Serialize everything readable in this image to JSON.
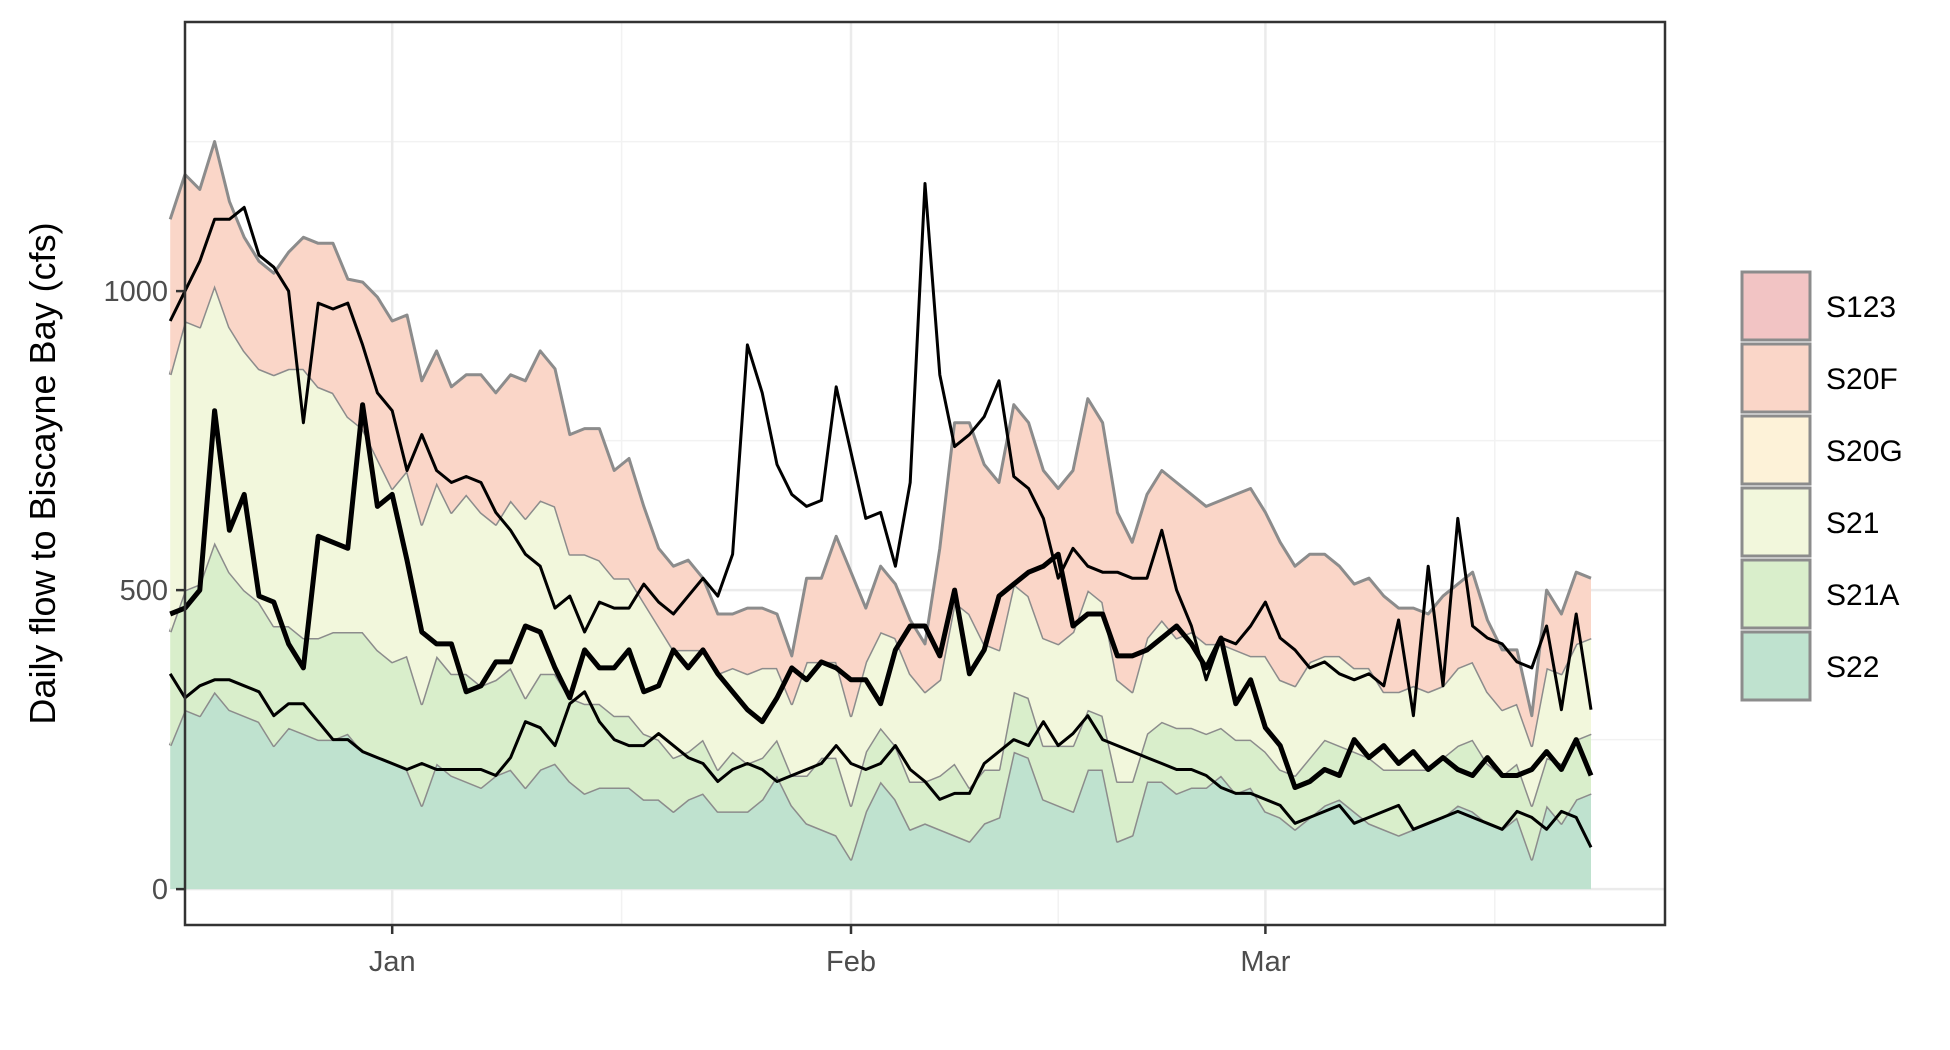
{
  "chart_data": {
    "type": "area",
    "stacked": true,
    "ylabel": "Daily flow to Biscayne Bay (cfs)",
    "xlabel": "",
    "title": "",
    "ylim": [
      -60,
      1450
    ],
    "y_ticks": [
      0,
      500,
      1000
    ],
    "x_ticks": [
      {
        "label": "Jan",
        "date": "2021-01-01"
      },
      {
        "label": "Feb",
        "date": "2021-02-01"
      },
      {
        "label": "Mar",
        "date": "2021-03-01"
      }
    ],
    "xlim": [
      "2020-12-18",
      "2021-03-28"
    ],
    "grid": true,
    "legend_position": "right",
    "series": [
      {
        "name": "S123",
        "color": "#f2c4c4",
        "values": []
      },
      {
        "name": "S20F",
        "color": "#fad6c8",
        "values": [
          260,
          245,
          230,
          240,
          210,
          190,
          180,
          170,
          195,
          220,
          240,
          250,
          230,
          245,
          270,
          280,
          260,
          240,
          220,
          210,
          200,
          230,
          220,
          210,
          230,
          250,
          230,
          200,
          210,
          220,
          180,
          200,
          160,
          130,
          140,
          150,
          120,
          100,
          90,
          110,
          100,
          90,
          80,
          140,
          140,
          210,
          240,
          90,
          110,
          90,
          90,
          80,
          220,
          300,
          320,
          300,
          280,
          300,
          290,
          280,
          260,
          270,
          320,
          300,
          280,
          250,
          240,
          250,
          260,
          230,
          230,
          240,
          260,
          280,
          240,
          230,
          200,
          180,
          170,
          150,
          140,
          150,
          160,
          140,
          130,
          130,
          150,
          140,
          150,
          120,
          100,
          90,
          50,
          130,
          100,
          120,
          100
        ]
      },
      {
        "name": "S20G",
        "color": "#fdf2d8",
        "values": []
      },
      {
        "name": "S21",
        "color": "#f2f7dc",
        "values": [
          430,
          450,
          430,
          430,
          410,
          400,
          390,
          420,
          430,
          450,
          420,
          400,
          360,
          340,
          320,
          290,
          310,
          300,
          290,
          270,
          300,
          290,
          260,
          280,
          300,
          290,
          280,
          240,
          250,
          240,
          230,
          230,
          220,
          190,
          180,
          170,
          150,
          160,
          140,
          150,
          150,
          120,
          120,
          190,
          160,
          160,
          150,
          150,
          160,
          180,
          180,
          150,
          160,
          270,
          290,
          210,
          200,
          180,
          170,
          180,
          170,
          190,
          200,
          190,
          170,
          150,
          160,
          170,
          150,
          160,
          150,
          140,
          150,
          140,
          160,
          150,
          150,
          160,
          140,
          150,
          140,
          150,
          130,
          130,
          140,
          130,
          120,
          130,
          130,
          120,
          110,
          100,
          100,
          150,
          150,
          160,
          160
        ]
      },
      {
        "name": "S21A",
        "color": "#d9eecb",
        "values": [
          190,
          200,
          220,
          250,
          230,
          210,
          200,
          200,
          170,
          160,
          170,
          180,
          170,
          200,
          180,
          170,
          190,
          170,
          180,
          170,
          180,
          170,
          160,
          170,
          150,
          160,
          150,
          140,
          150,
          140,
          120,
          120,
          110,
          100,
          90,
          80,
          90,
          70,
          100,
          80,
          70,
          60,
          50,
          80,
          120,
          130,
          90,
          100,
          90,
          90,
          80,
          70,
          90,
          120,
          90,
          90,
          80,
          100,
          100,
          90,
          100,
          110,
          100,
          90,
          100,
          90,
          80,
          100,
          110,
          100,
          90,
          80,
          90,
          80,
          100,
          80,
          90,
          100,
          110,
          90,
          100,
          110,
          100,
          110,
          100,
          90,
          100,
          100,
          120,
          100,
          90,
          90,
          90,
          80,
          100,
          100,
          100
        ]
      },
      {
        "name": "S22",
        "color": "#bfe2cf",
        "values": [
          240,
          300,
          290,
          330,
          300,
          290,
          280,
          240,
          270,
          260,
          250,
          250,
          260,
          230,
          220,
          210,
          200,
          140,
          210,
          190,
          180,
          170,
          190,
          200,
          170,
          200,
          210,
          180,
          160,
          170,
          170,
          170,
          150,
          150,
          130,
          150,
          160,
          130,
          130,
          130,
          150,
          190,
          140,
          110,
          100,
          90,
          50,
          130,
          180,
          150,
          100,
          110,
          100,
          90,
          80,
          110,
          120,
          230,
          220,
          150,
          140,
          130,
          200,
          200,
          80,
          90,
          180,
          180,
          160,
          170,
          170,
          190,
          160,
          170,
          130,
          120,
          100,
          120,
          140,
          150,
          130,
          110,
          100,
          90,
          100,
          110,
          120,
          140,
          130,
          110,
          100,
          120,
          50,
          140,
          110,
          150,
          160
        ]
      }
    ],
    "dates_start": "2020-12-17",
    "overlay_lines": [
      {
        "name": "",
        "width": 5,
        "values": [
          460,
          470,
          500,
          800,
          600,
          660,
          490,
          480,
          410,
          370,
          590,
          580,
          570,
          810,
          640,
          660,
          550,
          430,
          410,
          410,
          330,
          340,
          380,
          380,
          440,
          430,
          370,
          320,
          400,
          370,
          370,
          400,
          330,
          340,
          400,
          370,
          400,
          360,
          330,
          300,
          280,
          320,
          370,
          350,
          380,
          370,
          350,
          350,
          310,
          400,
          440,
          440,
          390,
          500,
          360,
          400,
          490,
          510,
          530,
          540,
          560,
          440,
          460,
          460,
          390,
          390,
          400,
          420,
          440,
          410,
          370,
          420,
          310,
          350,
          270,
          240,
          170,
          180,
          200,
          190,
          250,
          220,
          240,
          210,
          230,
          200,
          220,
          200,
          190,
          220,
          190,
          190,
          200,
          230,
          200,
          250,
          190
        ]
      },
      {
        "name": "",
        "width": 3,
        "values": [
          950,
          1000,
          1050,
          1120,
          1120,
          1140,
          1060,
          1040,
          1000,
          780,
          980,
          970,
          980,
          910,
          830,
          800,
          700,
          760,
          700,
          680,
          690,
          680,
          630,
          600,
          560,
          540,
          470,
          490,
          430,
          480,
          470,
          470,
          510,
          480,
          460,
          490,
          520,
          490,
          560,
          910,
          830,
          710,
          660,
          640,
          650,
          840,
          730,
          620,
          630,
          540,
          680,
          1180,
          860,
          740,
          760,
          790,
          850,
          690,
          670,
          620,
          520,
          570,
          540,
          530,
          530,
          520,
          520,
          600,
          500,
          440,
          350,
          420,
          410,
          440,
          480,
          420,
          400,
          370,
          380,
          360,
          350,
          360,
          340,
          450,
          290,
          540,
          340,
          620,
          440,
          420,
          410,
          380,
          370,
          440,
          300,
          460,
          300
        ]
      },
      {
        "name": "",
        "width": 3,
        "values": [
          360,
          320,
          340,
          350,
          350,
          340,
          330,
          290,
          310,
          310,
          280,
          250,
          250,
          230,
          220,
          210,
          200,
          210,
          200,
          200,
          200,
          200,
          190,
          220,
          280,
          270,
          240,
          310,
          330,
          280,
          250,
          240,
          240,
          260,
          240,
          220,
          210,
          180,
          200,
          210,
          200,
          180,
          190,
          200,
          210,
          240,
          210,
          200,
          210,
          240,
          200,
          180,
          150,
          160,
          160,
          210,
          230,
          250,
          240,
          280,
          240,
          260,
          290,
          250,
          240,
          230,
          220,
          210,
          200,
          200,
          190,
          170,
          160,
          160,
          150,
          140,
          110,
          120,
          130,
          140,
          110,
          120,
          130,
          140,
          100,
          110,
          120,
          130,
          120,
          110,
          100,
          130,
          120,
          100,
          130,
          120,
          70
        ]
      }
    ]
  },
  "legend": {
    "items": [
      {
        "label": "S123",
        "color": "#f2c4c4"
      },
      {
        "label": "S20F",
        "color": "#fad6c8"
      },
      {
        "label": "S20G",
        "color": "#fdf2d8"
      },
      {
        "label": "S21",
        "color": "#f2f7dc"
      },
      {
        "label": "S21A",
        "color": "#d9eecb"
      },
      {
        "label": "S22",
        "color": "#bfe2cf"
      }
    ]
  }
}
